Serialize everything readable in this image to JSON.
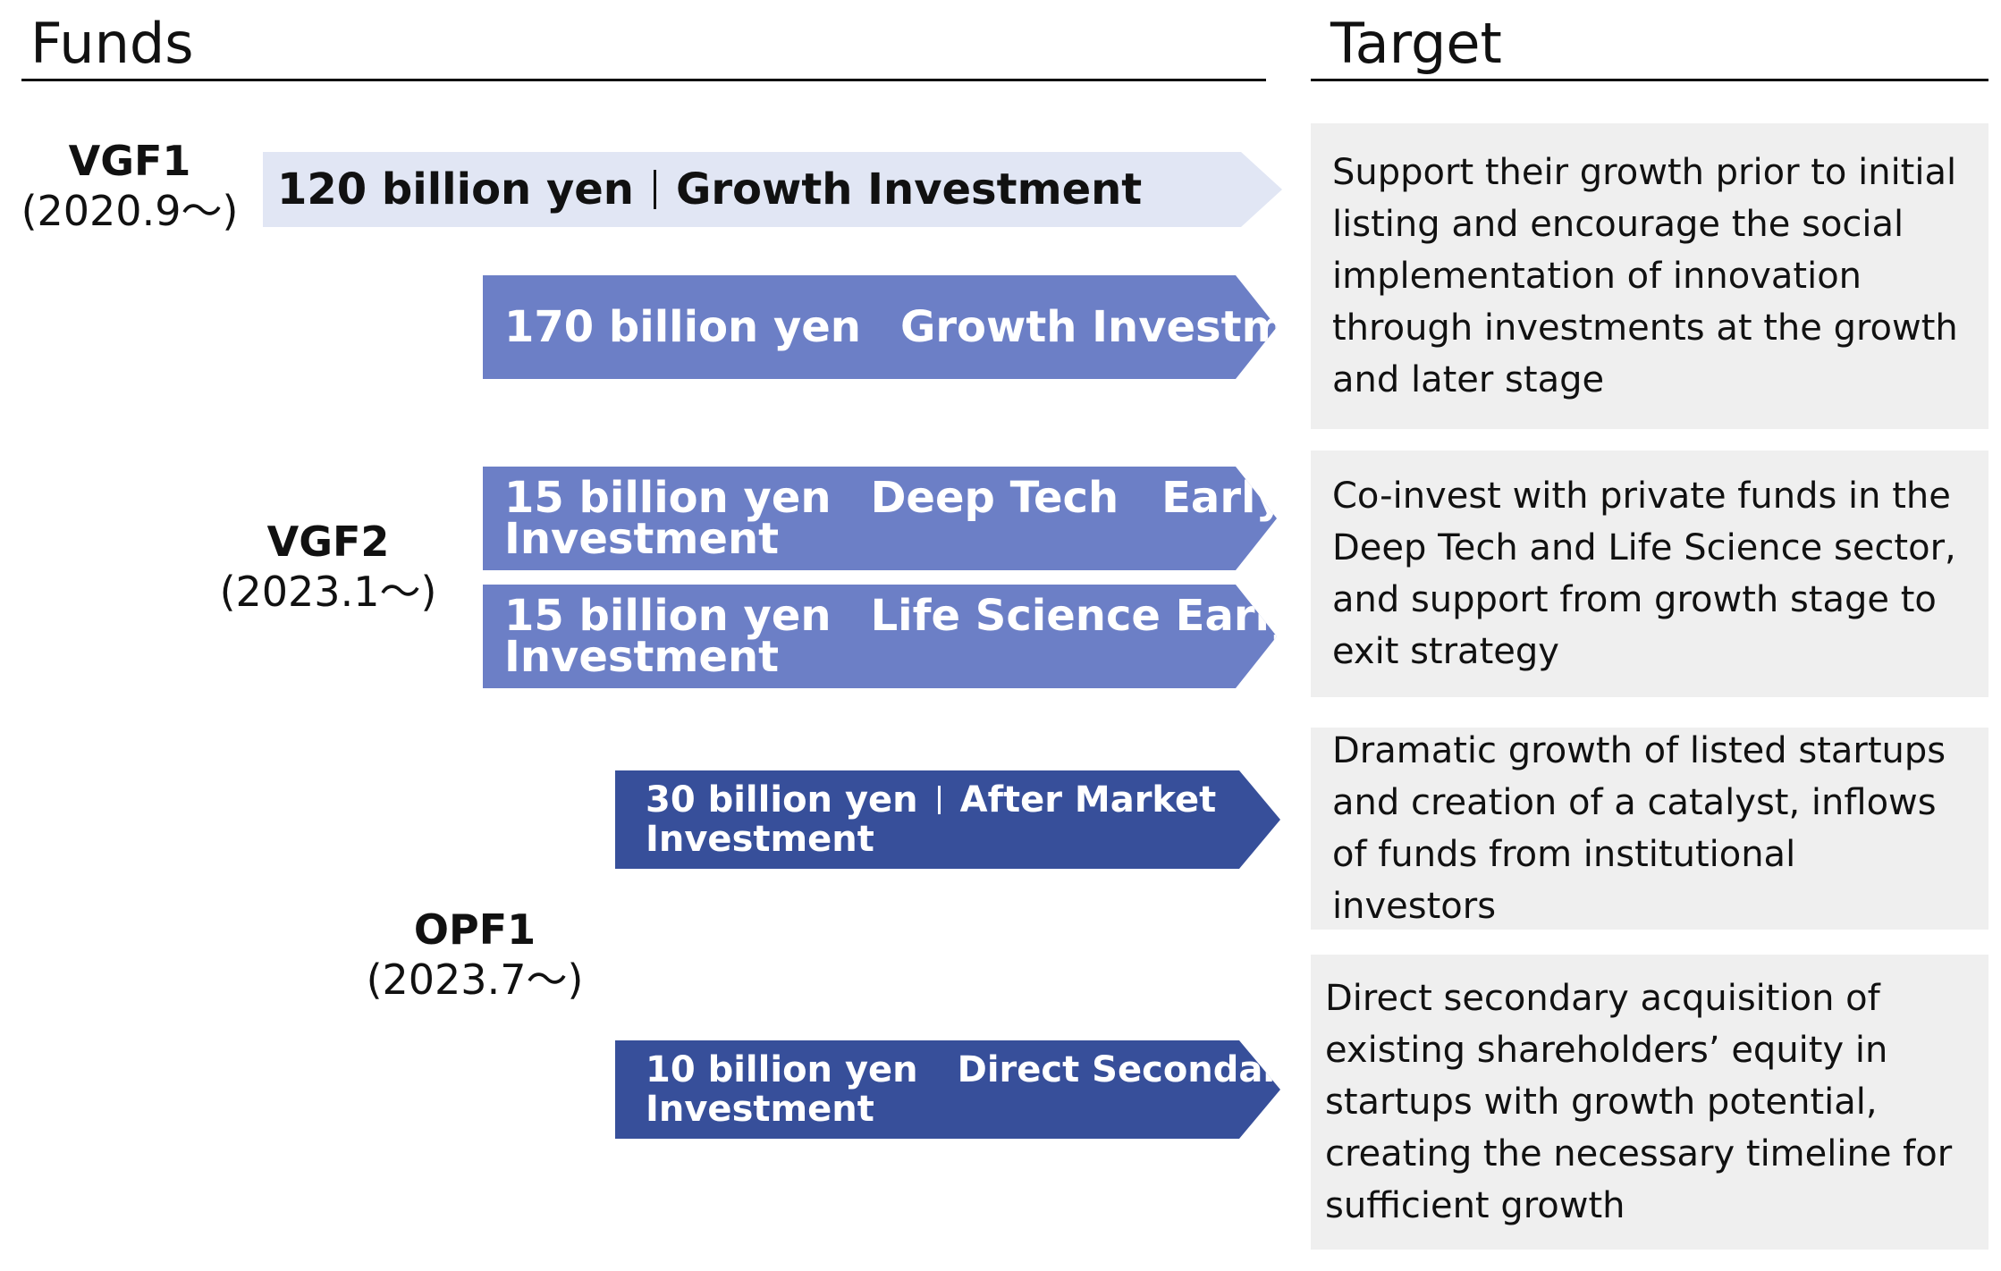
{
  "headers": {
    "funds": "Funds",
    "target": "Target"
  },
  "funds": [
    {
      "name": "VGF1",
      "date": "(2020.9～)"
    },
    {
      "name": "VGF2",
      "date": "(2023.1～)"
    },
    {
      "name": "OPF1",
      "date": "(2023.7～)"
    }
  ],
  "arrows": [
    {
      "amount": "120 billion yen",
      "type": "Growth Investment",
      "type_cont": ""
    },
    {
      "amount": "170 billion yen",
      "type": "Growth Investment",
      "type_cont": ""
    },
    {
      "amount": "15 billion yen",
      "type": "Deep Tech　Early",
      "type_cont": "Investment"
    },
    {
      "amount": "15 billion yen",
      "type": "Life Science  Early",
      "type_cont": "Investment"
    },
    {
      "amount": "30 billion yen",
      "type": "After Market",
      "type_cont": "Investment"
    },
    {
      "amount": "10 billion yen",
      "type": "Direct Secondary",
      "type_cont": "Investment"
    }
  ],
  "targets": [
    "Support their growth prior to initial listing and encourage the social implementation of innovation through investments at the growth and later stage",
    "Co-invest with private funds in the Deep Tech and Life Science sector, and support from growth stage to exit strategy",
    "Dramatic growth of listed startups and creation of a catalyst, inflows of funds from institutional investors",
    "Direct secondary acquisition of existing shareholders’ equity in startups with growth potential, creating the necessary timeline for sufficient growth"
  ],
  "colors": {
    "vgf1_arrow": "#e1e6f4",
    "vgf2_arrow": "#6c7fc6",
    "opf1_arrow": "#374f9a",
    "target_box": "#efefef"
  }
}
